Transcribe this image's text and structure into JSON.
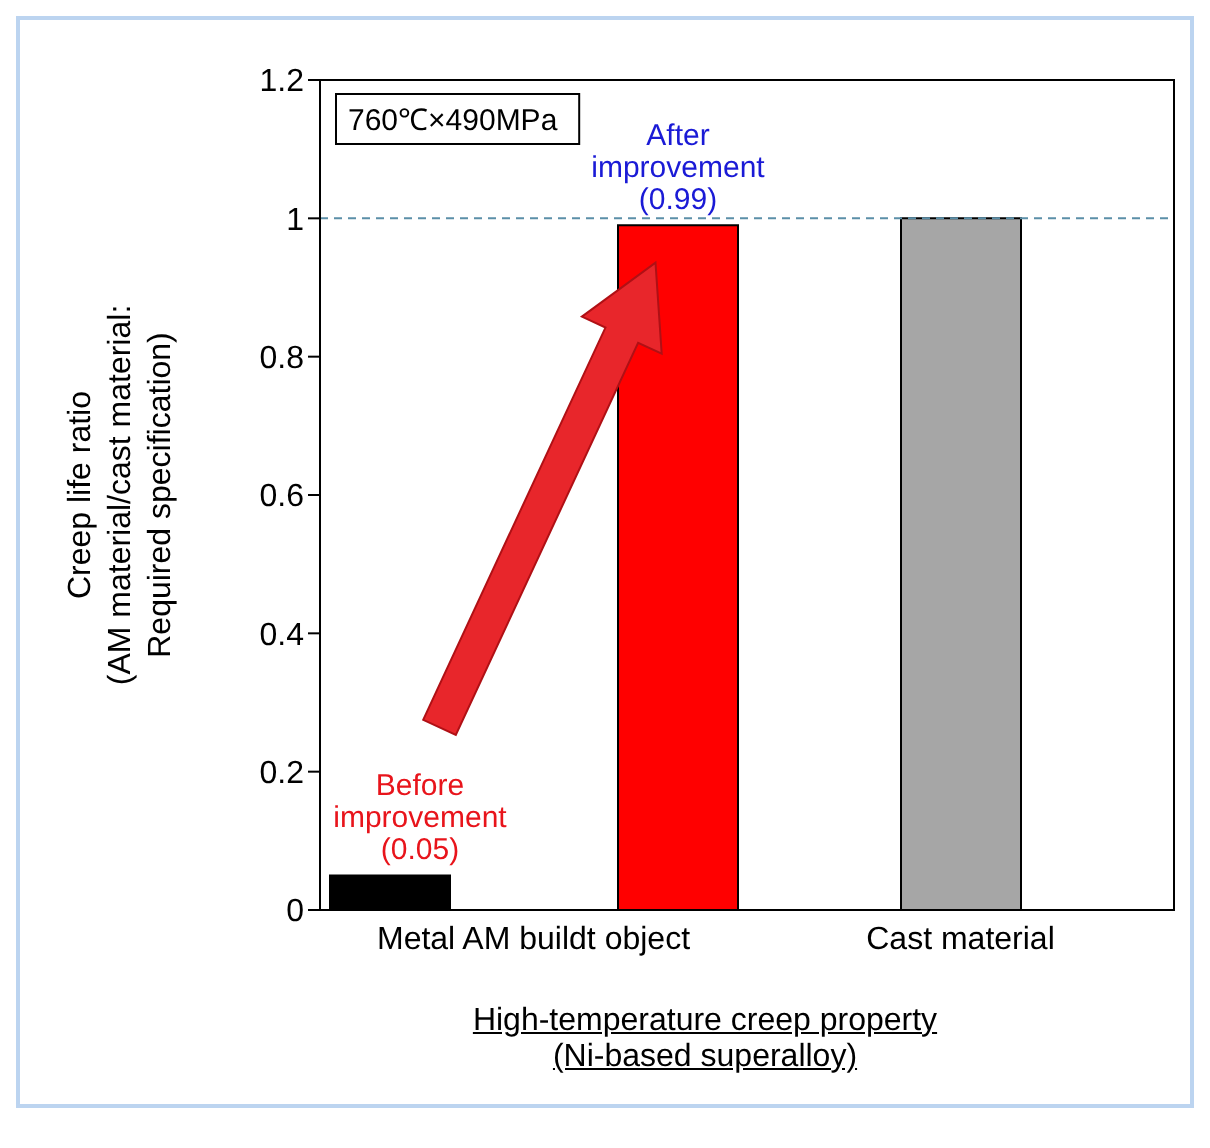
{
  "chart_data": {
    "type": "bar",
    "categories": [
      "Metal AM buildt object",
      "Cast material"
    ],
    "series": [
      {
        "color": "#000000",
        "values": [
          0.05,
          null
        ]
      },
      {
        "color": "#a6a6a6",
        "values": [
          null,
          1.0
        ]
      },
      {
        "color": "#ff0000",
        "values": [
          0.99,
          null
        ]
      }
    ],
    "ylabel": "Creep life ratio (AM material/cast material: Required specification)",
    "xlabel": "High-temperature creep property (Ni-based superalloy)",
    "ylim": [
      0,
      1.2
    ],
    "yticks": [
      0,
      0.2,
      0.4,
      0.6,
      0.8,
      1,
      1.2
    ],
    "ref_lines": [
      {
        "axis": "y",
        "value": 1,
        "line_style": "dashed",
        "color": "#5b8fa8"
      }
    ],
    "annotations": [
      "760℃×490MPa",
      "Before improvement (0.05)",
      "After improvement (0.99)"
    ]
  }
}
